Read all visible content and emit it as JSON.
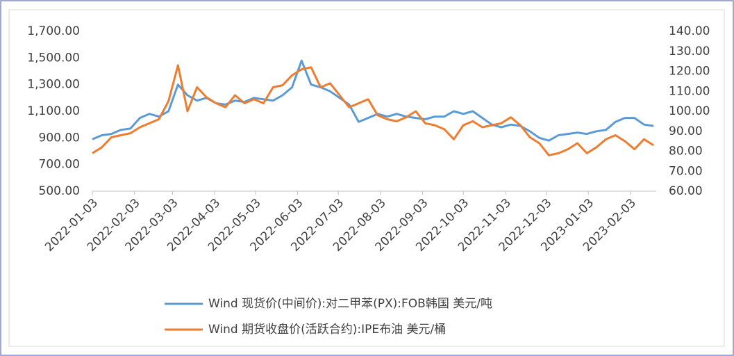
{
  "chart_data": {
    "type": "line",
    "x": [
      "2022-01-03",
      "2022-01-10",
      "2022-01-17",
      "2022-01-24",
      "2022-01-31",
      "2022-02-07",
      "2022-02-14",
      "2022-02-21",
      "2022-02-28",
      "2022-03-07",
      "2022-03-14",
      "2022-03-21",
      "2022-03-28",
      "2022-04-04",
      "2022-04-11",
      "2022-04-18",
      "2022-04-25",
      "2022-05-02",
      "2022-05-09",
      "2022-05-16",
      "2022-05-23",
      "2022-05-30",
      "2022-06-06",
      "2022-06-13",
      "2022-06-20",
      "2022-06-27",
      "2022-07-04",
      "2022-07-11",
      "2022-07-18",
      "2022-07-25",
      "2022-08-01",
      "2022-08-08",
      "2022-08-15",
      "2022-08-22",
      "2022-08-29",
      "2022-09-05",
      "2022-09-12",
      "2022-09-19",
      "2022-09-26",
      "2022-10-03",
      "2022-10-10",
      "2022-10-17",
      "2022-10-24",
      "2022-10-31",
      "2022-11-07",
      "2022-11-14",
      "2022-11-21",
      "2022-11-28",
      "2022-12-05",
      "2022-12-12",
      "2022-12-19",
      "2022-12-26",
      "2023-01-02",
      "2023-01-09",
      "2023-01-16",
      "2023-01-23",
      "2023-01-30",
      "2023-02-06",
      "2023-02-13",
      "2023-02-20"
    ],
    "series": [
      {
        "name": "Wind 现货价(中间价):对二甲苯(PX):FOB韩国 美元/吨",
        "color": "#5b9bd5",
        "values": [
          890,
          920,
          930,
          960,
          970,
          1050,
          1080,
          1060,
          1100,
          1300,
          1220,
          1180,
          1200,
          1160,
          1150,
          1180,
          1170,
          1200,
          1190,
          1180,
          1220,
          1280,
          1480,
          1300,
          1280,
          1250,
          1200,
          1150,
          1020,
          1050,
          1080,
          1060,
          1080,
          1060,
          1050,
          1040,
          1060,
          1060,
          1100,
          1080,
          1100,
          1050,
          1000,
          980,
          1000,
          990,
          950,
          900,
          880,
          920,
          930,
          940,
          930,
          950,
          960,
          1020,
          1050,
          1050,
          1000,
          990
        ]
      },
      {
        "name": "Wind 期货收盘价(活跃合约):IPE布油 美元/桶",
        "color": "#ed7d31",
        "axis": "y2",
        "values": [
          79,
          82,
          87,
          88,
          89,
          92,
          94,
          96,
          105,
          123,
          100,
          112,
          107,
          104,
          102,
          108,
          104,
          106,
          104,
          112,
          113,
          118,
          121,
          122,
          112,
          114,
          108,
          102,
          104,
          106,
          98,
          96,
          95,
          97,
          100,
          94,
          93,
          91,
          86,
          93,
          95,
          92,
          93,
          94,
          97,
          93,
          87,
          84,
          78,
          79,
          81,
          84,
          79,
          82,
          86,
          88,
          85,
          81,
          86,
          83
        ]
      }
    ],
    "xlim": [
      "2022-01-03",
      "2023-02-22"
    ],
    "xticks": [
      "2022-01-03",
      "2022-02-03",
      "2022-03-03",
      "2022-04-03",
      "2022-05-03",
      "2022-06-03",
      "2022-07-03",
      "2022-08-03",
      "2022-09-03",
      "2022-10-03",
      "2022-11-03",
      "2022-12-03",
      "2023-01-03",
      "2023-02-03"
    ],
    "ylim": [
      500,
      1700
    ],
    "yticks": [
      {
        "value": 500,
        "label": "500.00"
      },
      {
        "value": 700,
        "label": "700.00"
      },
      {
        "value": 900,
        "label": "900.00"
      },
      {
        "value": 1100,
        "label": "1,100.00"
      },
      {
        "value": 1300,
        "label": "1,300.00"
      },
      {
        "value": 1500,
        "label": "1,500.00"
      },
      {
        "value": 1700,
        "label": "1,700.00"
      }
    ],
    "y2lim": [
      60,
      140
    ],
    "y2ticks": [
      {
        "value": 60,
        "label": "60.00"
      },
      {
        "value": 70,
        "label": "70.00"
      },
      {
        "value": 80,
        "label": "80.00"
      },
      {
        "value": 90,
        "label": "90.00"
      },
      {
        "value": 100,
        "label": "100.00"
      },
      {
        "value": 110,
        "label": "110.00"
      },
      {
        "value": 120,
        "label": "120.00"
      },
      {
        "value": 130,
        "label": "130.00"
      },
      {
        "value": 140,
        "label": "140.00"
      }
    ],
    "grid": false
  }
}
